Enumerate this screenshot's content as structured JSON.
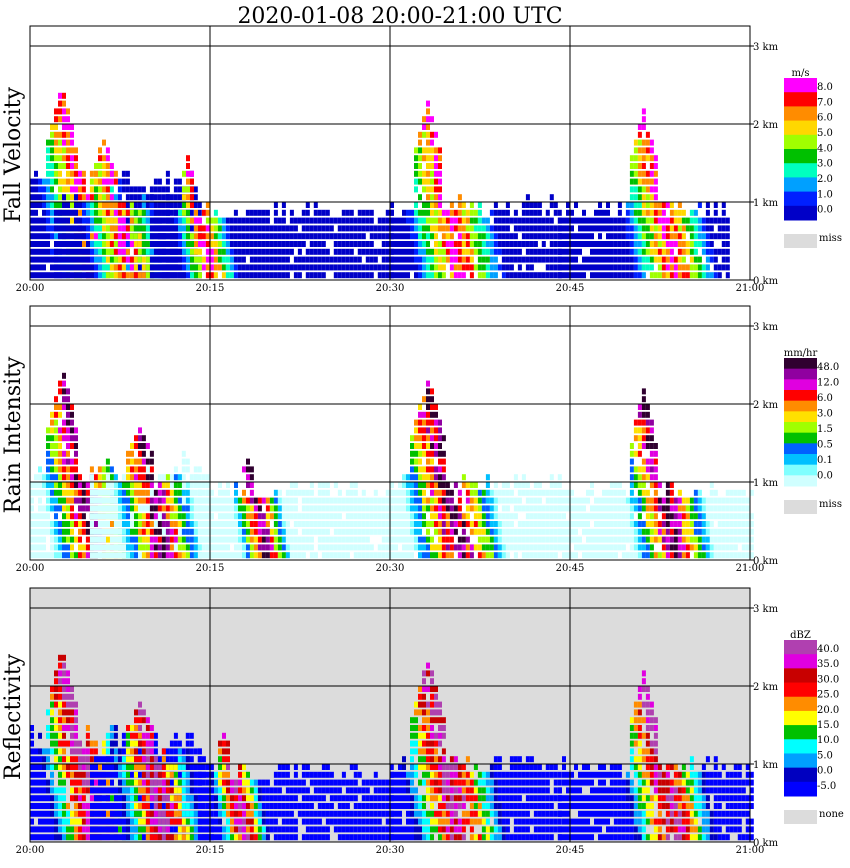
{
  "title": "2020-01-08   20:00-21:00 UTC",
  "chart_data": [
    {
      "type": "heatmap",
      "ylabel": "Fall Velocity",
      "time_ticks": [
        "20:00",
        "20:15",
        "20:30",
        "20:45",
        "21:00"
      ],
      "height_ticks": [
        "0 km",
        "1 km",
        "2 km",
        "3 km"
      ],
      "ylim_km": [
        0,
        3.2
      ],
      "grid": true,
      "background": "white",
      "colorbar": {
        "unit": "m/s",
        "labels": [
          "8.0",
          "7.0",
          "6.0",
          "5.0",
          "4.0",
          "3.0",
          "2.0",
          "1.0",
          "0.0"
        ],
        "colors": [
          "#ff00ff",
          "#ff0000",
          "#ff8c00",
          "#ffd700",
          "#a0ff00",
          "#00c000",
          "#00ffc0",
          "#00a0ff",
          "#0020ff",
          "#0000c8"
        ],
        "missing_label": "miss"
      },
      "echoes": [
        {
          "t0": 0,
          "t1": 14,
          "top": 1.3,
          "core": 2.4,
          "center": 2.5,
          "width": 1.2
        },
        {
          "t0": 2,
          "t1": 12,
          "top": 1.0,
          "core": 1.8,
          "center": 6,
          "width": 1.0
        },
        {
          "t0": 10,
          "t1": 30,
          "top": 0.85,
          "core": 1.6,
          "center": 13,
          "width": 0.6
        },
        {
          "t0": 30,
          "t1": 44,
          "top": 0.95,
          "core": 2.3,
          "center": 33,
          "width": 1.3
        },
        {
          "t0": 44,
          "t1": 58,
          "top": 0.9,
          "core": 2.2,
          "center": 51,
          "width": 1.2
        }
      ]
    },
    {
      "type": "heatmap",
      "ylabel": "Rain Intensity",
      "time_ticks": [
        "20:00",
        "20:15",
        "20:30",
        "20:45",
        "21:00"
      ],
      "height_ticks": [
        "0 km",
        "1 km",
        "2 km",
        "3 km"
      ],
      "ylim_km": [
        0,
        3.2
      ],
      "grid": true,
      "background": "white",
      "colorbar": {
        "unit": "mm/hr",
        "labels": [
          "48.0",
          "12.0",
          "6.0",
          "3.0",
          "1.5",
          "0.5",
          "0.1",
          "0.0"
        ],
        "colors": [
          "#300030",
          "#9000a0",
          "#e000e0",
          "#ff0000",
          "#ff8c00",
          "#ffe000",
          "#a0ff00",
          "#00c000",
          "#0060ff",
          "#00c0ff",
          "#80ffff",
          "#d0ffff"
        ],
        "missing_label": "miss"
      },
      "echoes": [
        {
          "t0": 0,
          "t1": 14,
          "top": 1.2,
          "core": 2.4,
          "center": 2.5,
          "width": 1.2
        },
        {
          "t0": 5,
          "t1": 15,
          "top": 1.0,
          "core": 1.7,
          "center": 9,
          "width": 1.1
        },
        {
          "t0": 14,
          "t1": 30,
          "top": 0.9,
          "core": 1.3,
          "center": 18,
          "width": 0.5
        },
        {
          "t0": 30,
          "t1": 44,
          "top": 1.0,
          "core": 2.3,
          "center": 33,
          "width": 1.4
        },
        {
          "t0": 44,
          "t1": 60,
          "top": 0.9,
          "core": 2.2,
          "center": 51,
          "width": 1.1
        }
      ]
    },
    {
      "type": "heatmap",
      "ylabel": "Reflectivity",
      "time_ticks": [
        "20:00",
        "20:15",
        "20:30",
        "20:45",
        "21:00"
      ],
      "height_ticks": [
        "0 km",
        "1 km",
        "2 km",
        "3 km"
      ],
      "ylim_km": [
        0,
        3.2
      ],
      "grid": true,
      "background": "light-gray",
      "colorbar": {
        "unit": "dBZ",
        "labels": [
          "40.0",
          "35.0",
          "30.0",
          "25.0",
          "20.0",
          "15.0",
          "10.0",
          "5.0",
          "0.0",
          "-5.0"
        ],
        "colors": [
          "#b040b0",
          "#e000e0",
          "#c80000",
          "#ff0000",
          "#ff8c00",
          "#ffff00",
          "#00c000",
          "#00ffff",
          "#00a0ff",
          "#0000c0",
          "#0000ff"
        ],
        "missing_label": "none"
      },
      "echoes": [
        {
          "t0": 0,
          "t1": 14,
          "top": 1.3,
          "core": 2.4,
          "center": 2.5,
          "width": 1.2
        },
        {
          "t0": 5,
          "t1": 15,
          "top": 1.1,
          "core": 1.8,
          "center": 9,
          "width": 1.1
        },
        {
          "t0": 14,
          "t1": 30,
          "top": 0.9,
          "core": 1.5,
          "center": 16,
          "width": 0.5
        },
        {
          "t0": 30,
          "t1": 44,
          "top": 1.0,
          "core": 2.3,
          "center": 33,
          "width": 1.4
        },
        {
          "t0": 44,
          "t1": 60,
          "top": 0.95,
          "core": 2.2,
          "center": 51,
          "width": 1.2
        }
      ]
    }
  ]
}
